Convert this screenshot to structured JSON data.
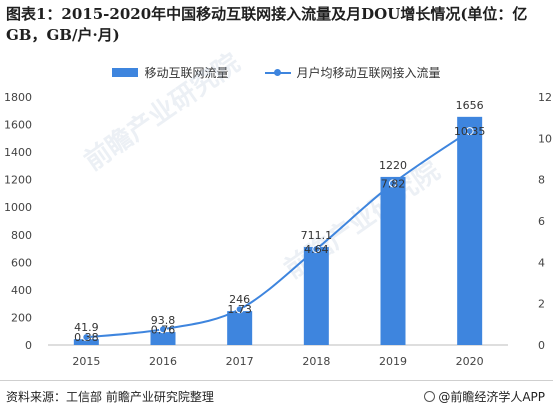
{
  "title": "图表1：2015-2020年中国移动互联网接入流量及月DOU增长情况(单位：亿GB，GB/户·月)",
  "legend": {
    "bar_label": "移动互联网流量",
    "line_label": "月户均移动互联网接入流量"
  },
  "source": "资料来源：工信部 前瞻产业研究院整理",
  "brand": "@前瞻经济学人APP",
  "watermark": "前瞻产业研究院",
  "colors": {
    "bar": "#3e85de",
    "line": "#3e85de"
  },
  "chart_data": {
    "type": "bar+line",
    "categories": [
      "2015",
      "2016",
      "2017",
      "2018",
      "2019",
      "2020"
    ],
    "series": [
      {
        "name": "移动互联网流量",
        "type": "bar",
        "axis": "left",
        "values": [
          41.9,
          93.8,
          246,
          711.1,
          1220,
          1656
        ]
      },
      {
        "name": "月户均移动互联网接入流量",
        "type": "line",
        "axis": "right",
        "values": [
          0.38,
          0.76,
          1.73,
          4.64,
          7.82,
          10.35
        ]
      }
    ],
    "y_left": {
      "min": 0,
      "max": 1800,
      "ticks": [
        0,
        200,
        400,
        600,
        800,
        1000,
        1200,
        1400,
        1600,
        1800
      ]
    },
    "y_right": {
      "min": 0,
      "max": 12,
      "ticks": [
        0,
        2,
        4,
        6,
        8,
        10,
        12
      ]
    },
    "bar_labels": [
      "41.9",
      "93.8",
      "246",
      "711.1",
      "1220",
      "1656"
    ],
    "line_labels": [
      "0.38",
      "0.76",
      "1.73",
      "4.64",
      "7.82",
      "10.35"
    ],
    "grid": false,
    "legend_position": "top-center"
  }
}
